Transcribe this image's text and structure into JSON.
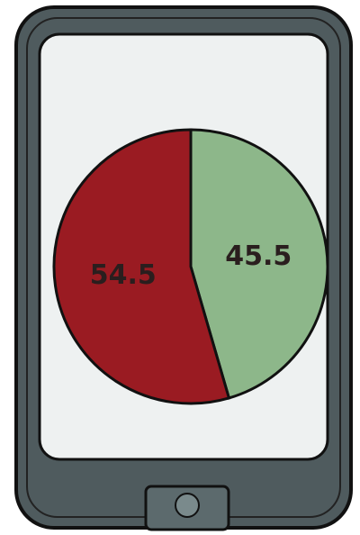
{
  "chart_data": {
    "type": "pie",
    "values": [
      45.5,
      54.5
    ],
    "colors": [
      "#8db78a",
      "#9a1b22"
    ],
    "start_angle": 0,
    "direction": "clockwise"
  }
}
